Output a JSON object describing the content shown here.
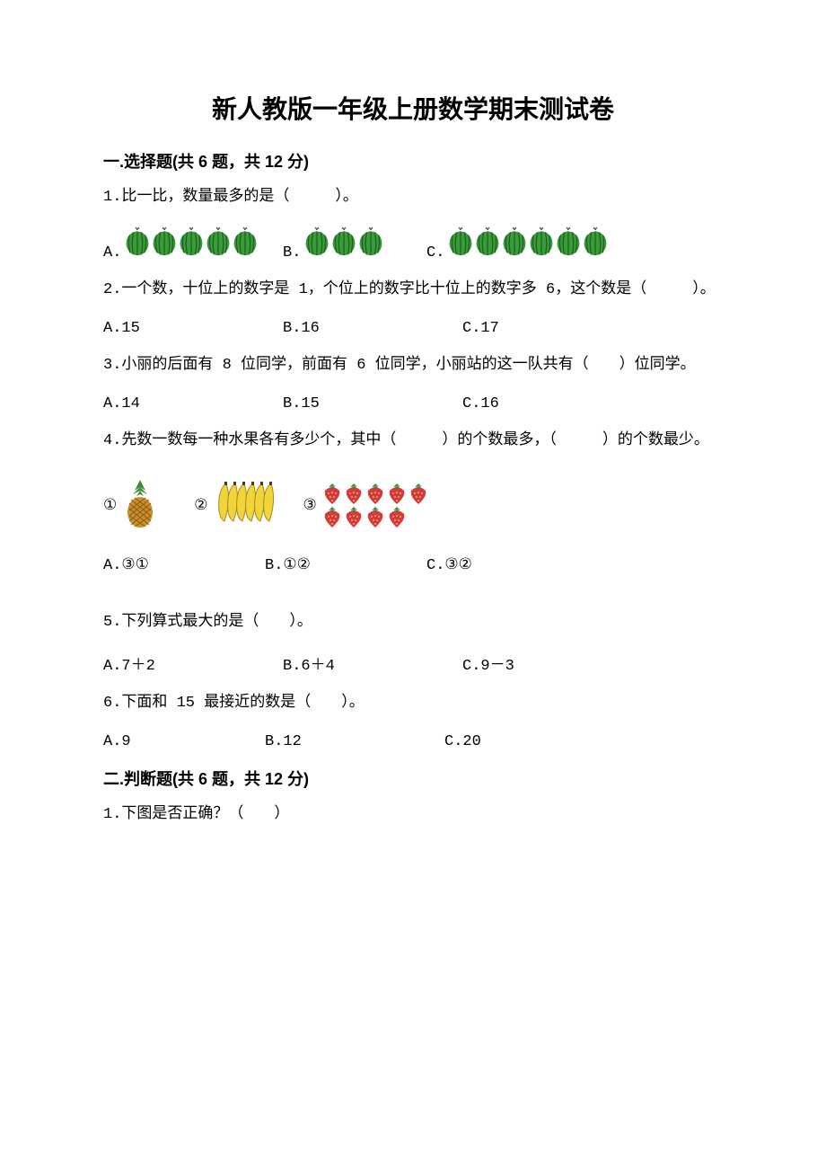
{
  "title": "新人教版一年级上册数学期末测试卷",
  "sections": {
    "s1": "一.选择题(共 6 题，共 12 分)",
    "s2": "二.判断题(共 6 题，共 12 分)"
  },
  "q1": {
    "prompt": "1.比一比，数量最多的是（　　　）。",
    "a_label": "A.",
    "b_label": "B.",
    "c_label": "C.",
    "a_count": 5,
    "b_count": 3,
    "c_count": 6,
    "melon_color": "#3a9b3a",
    "melon_dark": "#1d5f1d",
    "melon_top": "#4a4a4a"
  },
  "q2": {
    "prompt": "2.一个数，十位上的数字是 1，个位上的数字比十位上的数字多 6，这个数是（　　　）。",
    "a": "A.15",
    "b": "B.16",
    "c": "C.17"
  },
  "q3": {
    "prompt": "3.小丽的后面有 8 位同学，前面有 6 位同学，小丽站的这一队共有（　　）位同学。",
    "a": "A.14",
    "b": "B.15",
    "c": "C.16"
  },
  "q4": {
    "prompt": "4.先数一数每一种水果各有多少个，其中（　　　）的个数最多，（　　　）的个数最少。",
    "item1_label": "①",
    "item2_label": "②",
    "item3_label": "③",
    "banana_count": 6,
    "strawberry_rows": [
      5,
      4
    ],
    "a": "A.③①",
    "b": "B.①②",
    "c": "C.③②",
    "pineapple_fill": "#c98f2e",
    "pineapple_leaf": "#3d8b37",
    "banana_fill": "#f0d43a",
    "banana_stroke": "#a88a1e",
    "strawberry_fill": "#d43a3a",
    "strawberry_leaf": "#3d8b37"
  },
  "q5": {
    "prompt": "5.下列算式最大的是（　　）。",
    "a": "A.7＋2",
    "b": "B.6＋4",
    "c": "C.9－3"
  },
  "q6": {
    "prompt": "6.下面和 15 最接近的数是（　　）。",
    "a": "A.9",
    "b": "B.12",
    "c": "C.20"
  },
  "j1": {
    "prompt": "1.下图是否正确？（　　）"
  },
  "layout": {
    "opt_col_a": 200,
    "opt_col_b": 200
  }
}
